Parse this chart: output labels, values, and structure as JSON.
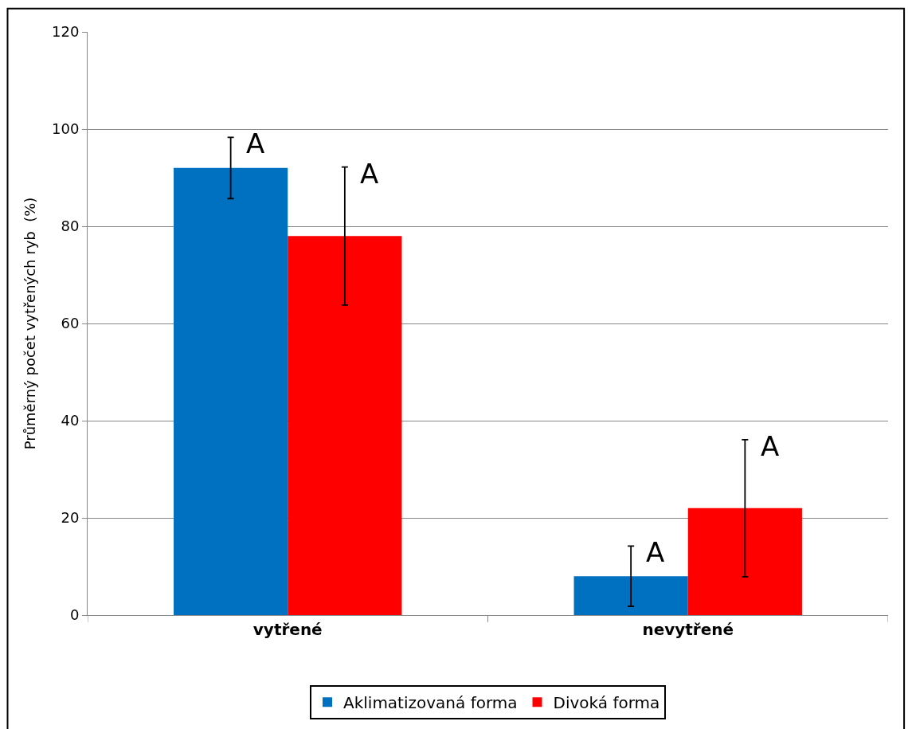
{
  "chart_data": {
    "type": "bar",
    "ylabel": "Průměrný počet vytřených ryb  (%)",
    "categories": [
      "vytřené",
      "nevytřené"
    ],
    "series": [
      {
        "name": "Aklimatizovaná forma",
        "color": "#0070c0",
        "values": [
          92,
          8
        ],
        "errors": [
          6.3,
          6.2
        ]
      },
      {
        "name": "Divoká forma",
        "color": "#ff0000",
        "values": [
          78,
          22
        ],
        "errors": [
          14.2,
          14.1
        ]
      }
    ],
    "ylim": [
      0,
      120
    ],
    "yticks": [
      0,
      20,
      40,
      60,
      80,
      100,
      120
    ],
    "grid": "y",
    "legend": "bottom",
    "annotations": [
      "A",
      "A",
      "A",
      "A"
    ]
  }
}
